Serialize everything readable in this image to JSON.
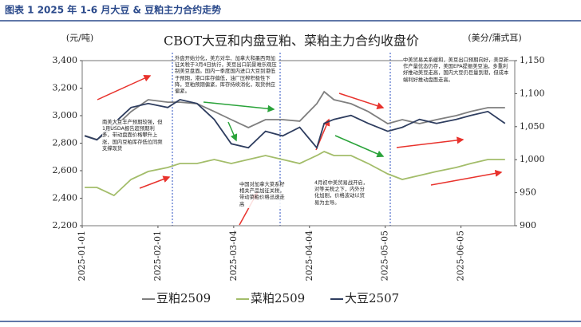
{
  "header": {
    "caption": "图表 1 2025 年 1-6 月大豆 & 豆粕主力合约走势"
  },
  "chart_data": {
    "type": "line",
    "title": "CBOT大豆和内盘豆粕、菜粕主力合约收盘价",
    "ylabel": "(元/吨)",
    "y2label": "(美分/蒲式耳)",
    "x": [
      "2025-01-02",
      "2025-01-07",
      "2025-01-14",
      "2025-01-21",
      "2025-01-28",
      "2025-02-05",
      "2025-02-10",
      "2025-02-17",
      "2025-02-24",
      "2025-03-03",
      "2025-03-10",
      "2025-03-17",
      "2025-03-24",
      "2025-03-31",
      "2025-04-07",
      "2025-04-10",
      "2025-04-14",
      "2025-04-21",
      "2025-04-28",
      "2025-05-06",
      "2025-05-12",
      "2025-05-19",
      "2025-05-26",
      "2025-06-03",
      "2025-06-09",
      "2025-06-16",
      "2025-06-23"
    ],
    "xlim": [
      "2025-01-01",
      "2025-06-27"
    ],
    "xticks": [
      "2025-01-01",
      "2025-02-01",
      "2025-03-04",
      "2025-04-04",
      "2025-05-05",
      "2025-06-05"
    ],
    "ylim": [
      2200,
      3400
    ],
    "yticks": [
      {
        "value": 2200,
        "label": "2,200"
      },
      {
        "value": 2400,
        "label": "2,400"
      },
      {
        "value": 2600,
        "label": "2,600"
      },
      {
        "value": 2800,
        "label": "2,800"
      },
      {
        "value": 3000,
        "label": "3,000"
      },
      {
        "value": 3200,
        "label": "3,200"
      },
      {
        "value": 3400,
        "label": "3,400"
      }
    ],
    "y2lim": [
      900,
      1150
    ],
    "y2ticks": [
      900,
      950,
      {
        "value": 1000,
        "label": "1,000"
      },
      {
        "value": 1050,
        "label": "1,050"
      },
      {
        "value": 1100,
        "label": "1,100"
      },
      {
        "value": 1150,
        "label": "1,150"
      }
    ],
    "series": [
      {
        "name": "豆粕2509",
        "color": "#7f7f7f",
        "values": [
          2855,
          2826,
          2913,
          3029,
          3116,
          3098,
          3098,
          3087,
          3030,
          2971,
          2913,
          2971,
          2971,
          2960,
          3087,
          3174,
          3116,
          3087,
          3030,
          2942,
          2971,
          2942,
          2971,
          3000,
          3030,
          3058,
          3058
        ]
      },
      {
        "name": "菜粕2509",
        "color": "#a3bd6a",
        "values": [
          2478,
          2478,
          2420,
          2536,
          2594,
          2623,
          2652,
          2652,
          2681,
          2652,
          2681,
          2710,
          2681,
          2652,
          2710,
          2739,
          2710,
          2710,
          2652,
          2577,
          2536,
          2565,
          2594,
          2623,
          2652,
          2681,
          2681
        ]
      },
      {
        "name": "大豆2507",
        "color": "#2e3d5f",
        "axis": "y2",
        "values": [
          1036,
          1030,
          1055,
          1079,
          1085,
          1079,
          1091,
          1085,
          1061,
          1024,
          1018,
          1043,
          1036,
          1049,
          1018,
          1055,
          1061,
          1067,
          1055,
          1043,
          1049,
          1061,
          1055,
          1061,
          1067,
          1073,
          1055
        ]
      }
    ],
    "annotations": [
      "南美大豆丰产预期较强，但1月USDA报告超预期利多，带动盘面价格攀升上涨，国内豆粕库存低位同频支撑现货",
      "外盘开始分化，美方对华、加拿大和墨西哥加征关税于3月4日执行，美豆出口前景难乐观压制美豆盘面。国内一季度国内进口大豆到港低于预期，港口库存偏低，油厂压榨积极性下降，豆粕预期偏紧，库存持续消化，现货供应偏紧。",
      "中国对加拿大菜系籽相关产品加征关税，带动菜粕价格迅速走高",
      "4月初中美贸易战开启，对等关税之下，内外分化加剧，价格波动以贸易为主导。",
      "中美贸易关系缓和，美豆出口预期向好，美豆新作产量优态仍存，美国EPA提振美豆油，多重利好推动美豆走高，国内大豆仍巨量到港，但成本端利好推动盘面走高。"
    ]
  }
}
